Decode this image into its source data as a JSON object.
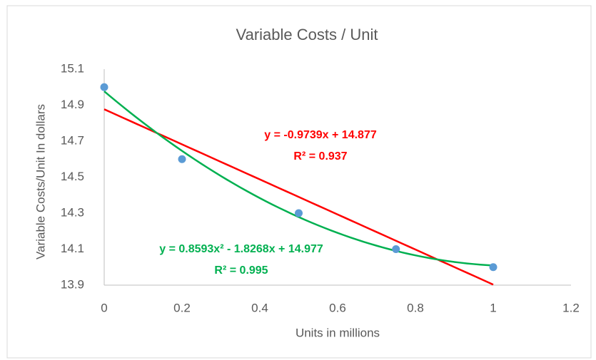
{
  "chart_data": {
    "type": "scatter",
    "title": "Variable Costs / Unit",
    "x_label": "Units in millions",
    "y_label": "Variable Costs/Unit In dollars",
    "x": [
      0,
      0.2,
      0.5,
      0.75,
      1
    ],
    "values": [
      15.0,
      14.6,
      14.3,
      14.1,
      14.0
    ],
    "color": "#5b9bd5",
    "xlim": [
      0,
      1.2
    ],
    "xticks": [
      0,
      0.2,
      0.4,
      0.6,
      0.8,
      1,
      1.2
    ],
    "ylim": [
      13.9,
      15.1
    ],
    "yticks": [
      13.9,
      14.1,
      14.3,
      14.5,
      14.7,
      14.9,
      15.1
    ],
    "grid": false,
    "trendlines": [
      {
        "type": "linear",
        "color": "#ff0000",
        "coefficients": [
          14.877,
          -0.9739
        ],
        "equation": "y = -0.9739x + 14.877",
        "r_squared": "R² = 0.937"
      },
      {
        "type": "polynomial",
        "color": "#00b050",
        "coefficients": [
          14.977,
          -1.8268,
          0.8593
        ],
        "equation": "y = 0.8593x² - 1.8268x + 14.977",
        "r_squared": "R² = 0.995"
      }
    ]
  }
}
